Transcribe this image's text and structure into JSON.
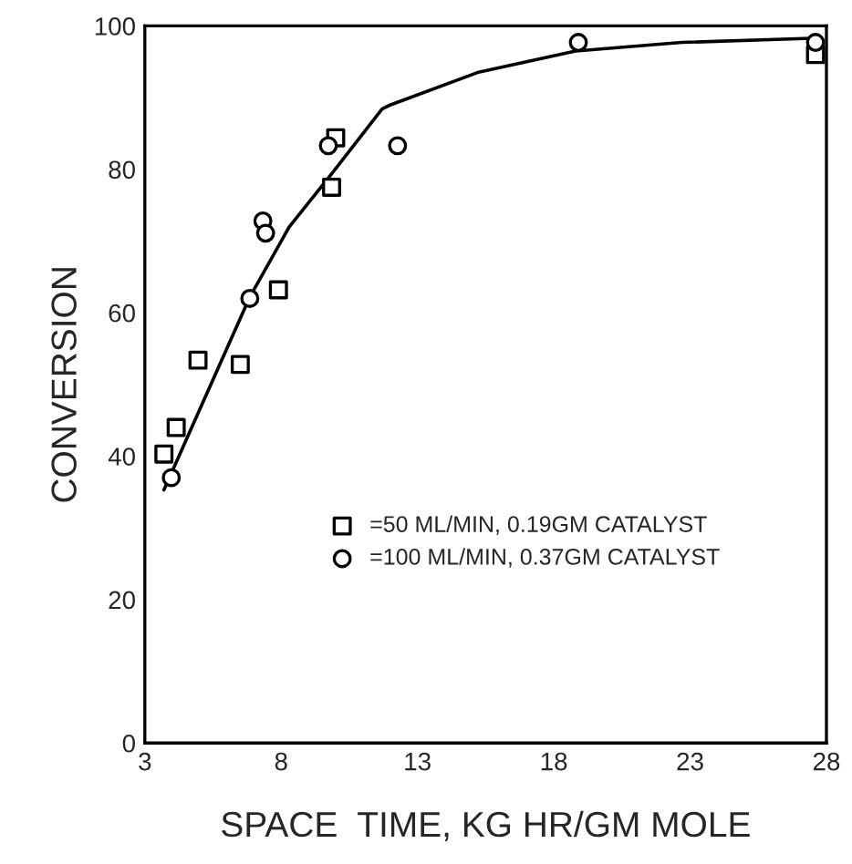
{
  "chart_data": {
    "type": "scatter",
    "xlabel": "SPACE  TIME, KG HR/GM MOLE",
    "ylabel": "CONVERSION",
    "xlim": [
      3,
      28
    ],
    "xticks": [
      3,
      8,
      13,
      18,
      23,
      28
    ],
    "ylim": [
      0,
      100
    ],
    "yticks": [
      0,
      20,
      40,
      60,
      80,
      100
    ],
    "grid": false,
    "legend": "bottom",
    "series": [
      {
        "name": "=50 ML/MIN, 0.19GM CATALYST",
        "color": "#000000",
        "marker": "square",
        "x": [
          3.7,
          4.15,
          4.95,
          6.5,
          7.9,
          9.85,
          10.0,
          27.6
        ],
        "values": [
          40.3,
          44,
          53.4,
          52.8,
          63.2,
          77.5,
          84.4,
          96
        ]
      },
      {
        "name": "=100 ML/MIN, 0.37GM CATALYST",
        "color": "#000000",
        "marker": "circle",
        "x": [
          3.97,
          6.85,
          7.33,
          7.43,
          9.73,
          12.27,
          18.9,
          27.6
        ],
        "values": [
          37,
          62,
          72.8,
          71.1,
          83.3,
          83.3,
          97.7,
          97.7
        ]
      },
      {
        "type": "line",
        "color": "#000000",
        "marker": "none",
        "line_style": "solid",
        "x": [
          3.7,
          6.85,
          8.3,
          9.9,
          11.7,
          11.95,
          15.2,
          18.8,
          22.7,
          27.7
        ],
        "values": [
          35.3,
          62.2,
          72,
          79.6,
          88.4,
          88.9,
          93.5,
          96.5,
          97.7,
          98.3
        ]
      }
    ]
  }
}
